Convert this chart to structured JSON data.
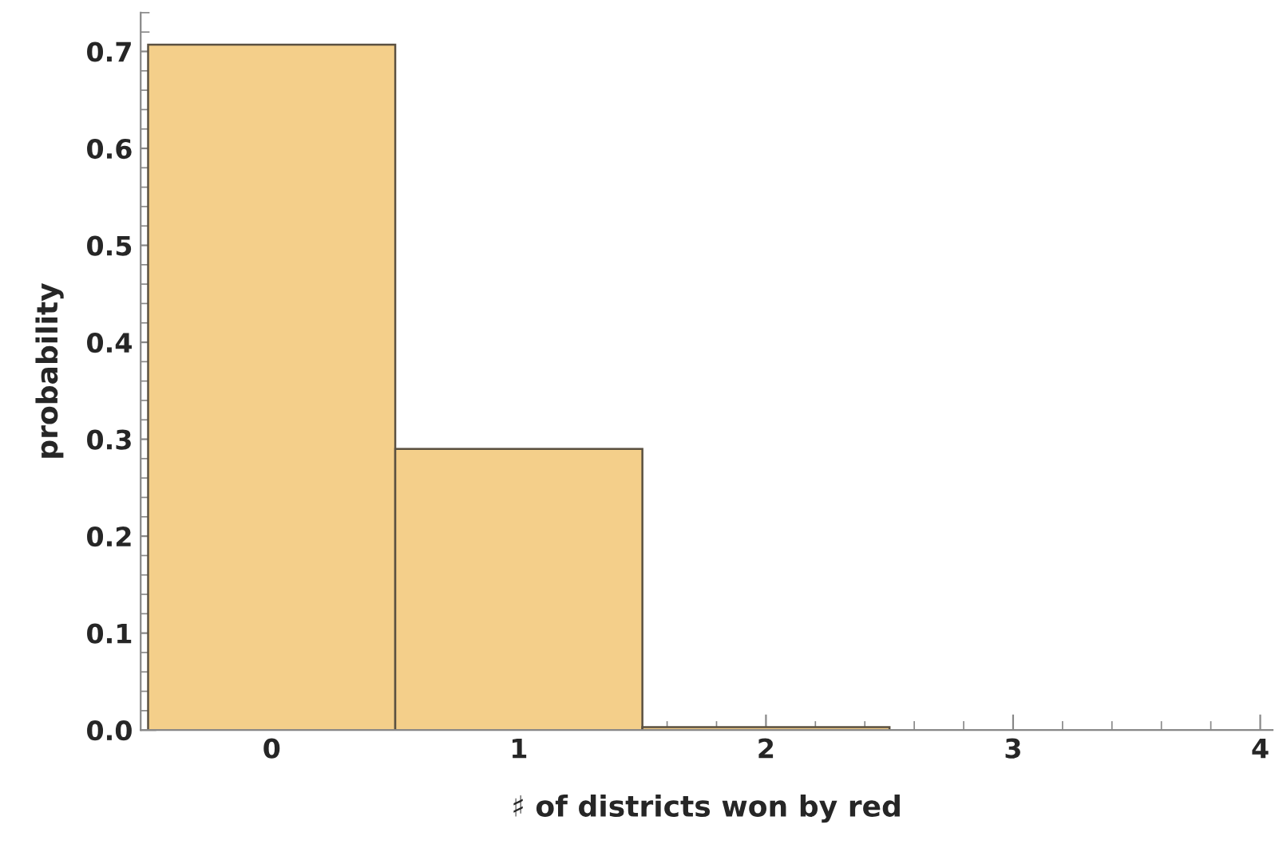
{
  "chart_data": {
    "type": "histogram",
    "xlabel": "♯ of districts won by red",
    "ylabel": "probability",
    "bins": [
      -0.5,
      0.5,
      1.5,
      2.5
    ],
    "values": [
      0.707,
      0.29,
      0.003
    ],
    "color": "#f4cf8a",
    "xlim": [
      -0.53,
      4.05
    ],
    "xticks": [
      0,
      1,
      2,
      3,
      4
    ],
    "ylim": [
      0,
      0.74
    ],
    "yticks": [
      {
        "value": 0,
        "label": "0.0"
      },
      0.1,
      0.2,
      0.3,
      0.4,
      0.5,
      0.6,
      0.7
    ],
    "grid": false
  }
}
